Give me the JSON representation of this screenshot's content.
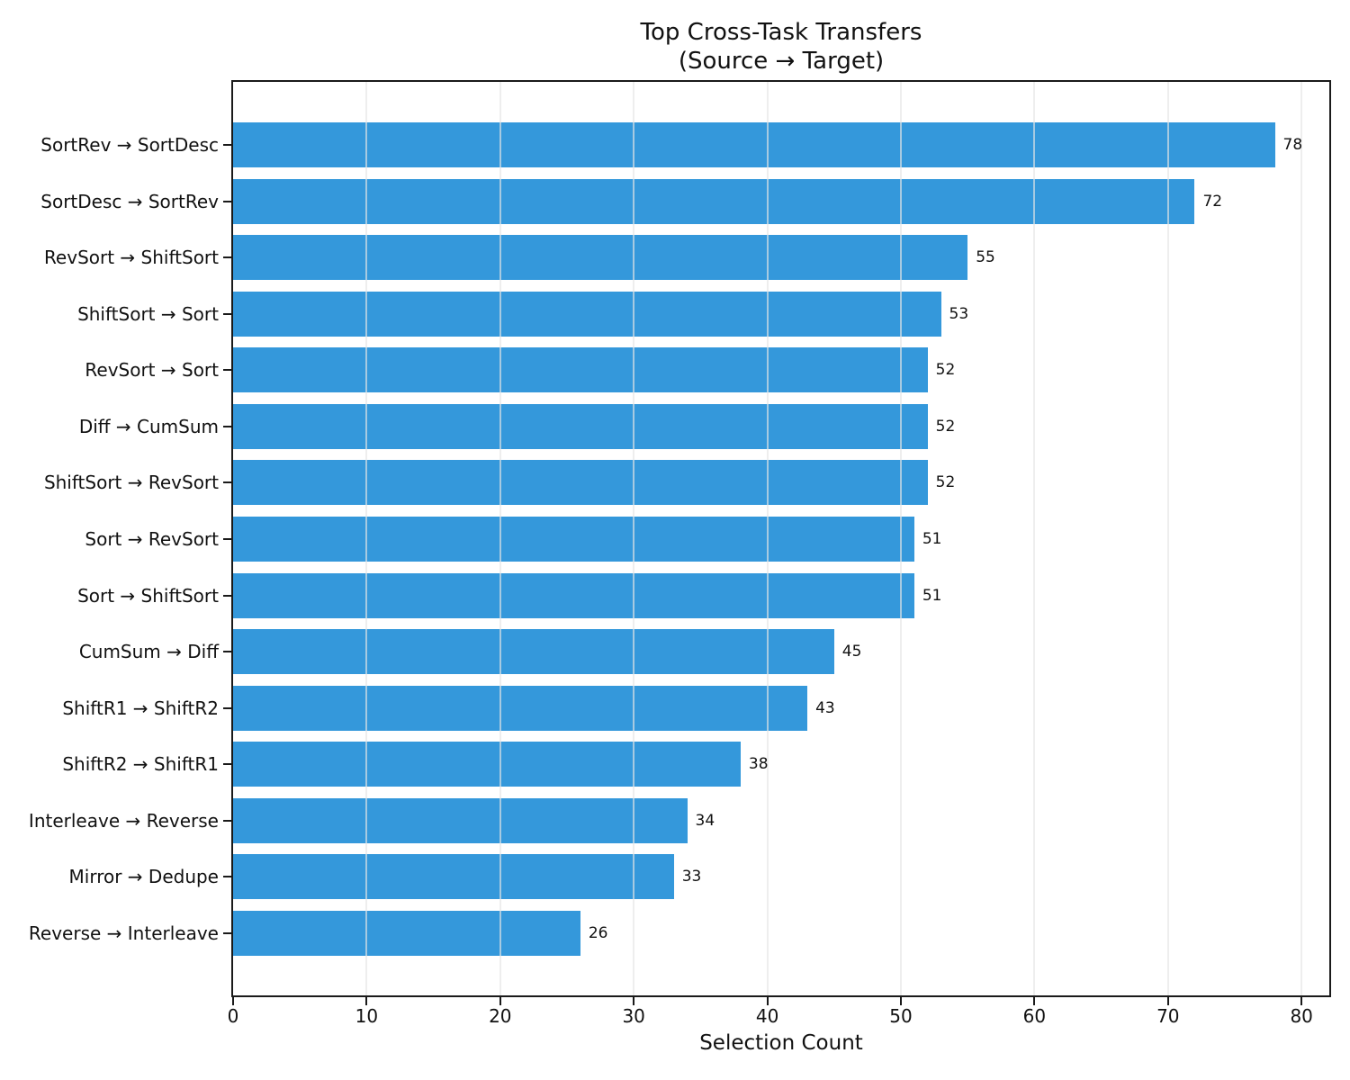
{
  "header": {
    "title": "Top Cross-Task Transfers",
    "subtitle": "(Source → Target)"
  },
  "chart_data": {
    "type": "bar",
    "orientation": "horizontal",
    "title": "Top Cross-Task Transfers (Source → Target)",
    "xlabel": "Selection Count",
    "ylabel": "",
    "categories": [
      "SortRev → SortDesc",
      "SortDesc → SortRev",
      "RevSort → ShiftSort",
      "ShiftSort → Sort",
      "RevSort → Sort",
      "Diff → CumSum",
      "ShiftSort → RevSort",
      "Sort → RevSort",
      "Sort → ShiftSort",
      "CumSum → Diff",
      "ShiftR1 → ShiftR2",
      "ShiftR2 → ShiftR1",
      "Interleave → Reverse",
      "Mirror → Dedupe",
      "Reverse → Interleave"
    ],
    "values": [
      78,
      72,
      55,
      53,
      52,
      52,
      52,
      51,
      51,
      45,
      43,
      38,
      34,
      33,
      26
    ],
    "xticks": [
      0,
      10,
      20,
      30,
      40,
      50,
      60,
      70,
      80
    ],
    "xlim": [
      0,
      82.3
    ],
    "grid": true,
    "legend": false,
    "value_labels_shown": true
  },
  "colors": {
    "bar": "#3498db",
    "grid": "#e5e5e5",
    "spine": "#1a1a1a",
    "text": "#111111",
    "background": "#ffffff"
  }
}
